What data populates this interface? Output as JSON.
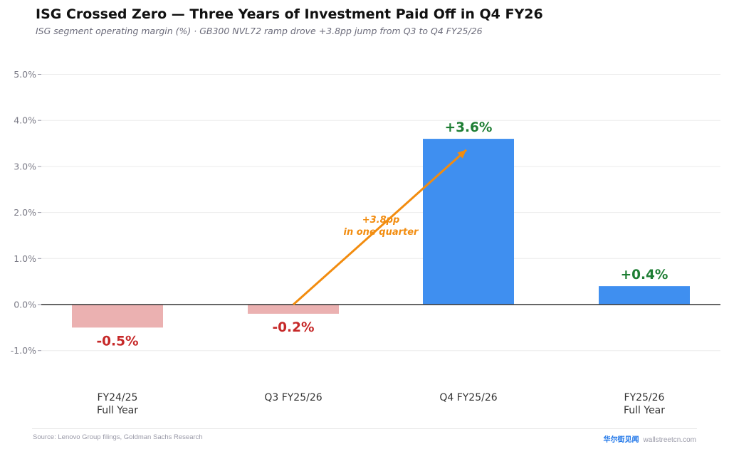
{
  "title": "ISG Crossed Zero — Three Years of Investment Paid Off in Q4 FY26",
  "subtitle": "ISG segment operating margin (%)  ·  GB300 NVL72 ramp drove +3.8pp jump from Q3 to Q4 FY25/26",
  "chart_data": {
    "type": "bar",
    "categories": [
      [
        "FY24/25",
        "Full Year"
      ],
      [
        "Q3 FY25/26"
      ],
      [
        "Q4 FY25/26"
      ],
      [
        "FY25/26",
        "Full Year"
      ]
    ],
    "values": [
      -0.5,
      -0.2,
      3.6,
      0.4
    ],
    "value_labels": [
      "-0.5%",
      "-0.2%",
      "+3.6%",
      "+0.4%"
    ],
    "ylim": [
      -1.6,
      5.2
    ],
    "yticks": [
      5.0,
      4.0,
      3.0,
      2.0,
      1.0,
      0.0,
      -1.0
    ],
    "ytick_labels": [
      "5.0%",
      "4.0%",
      "3.0%",
      "2.0%",
      "1.0%",
      "0.0%",
      "-1.0%"
    ],
    "grid": true,
    "colors": {
      "positive_bar": "#3f8ff0",
      "negative_bar": "#ebb1b1",
      "positive_label": "#1e7e34",
      "negative_label": "#c62828",
      "annotation": "#f28c0f",
      "zero_line": "#333333",
      "grid": "#ececec",
      "tick_text": "#7a7a86",
      "category_text": "#333333"
    },
    "annotation": {
      "text_line1": "+3.8pp",
      "text_line2": "in one quarter",
      "from": {
        "category_index": 1,
        "value": 0.0
      },
      "to": {
        "category_index": 2,
        "value": 3.36
      }
    }
  },
  "footer": {
    "source": "Source: Lenovo Group filings, Goldman Sachs Research",
    "brand_cn": "华尔街见闻",
    "brand_en": "wallstreetcn.com"
  }
}
